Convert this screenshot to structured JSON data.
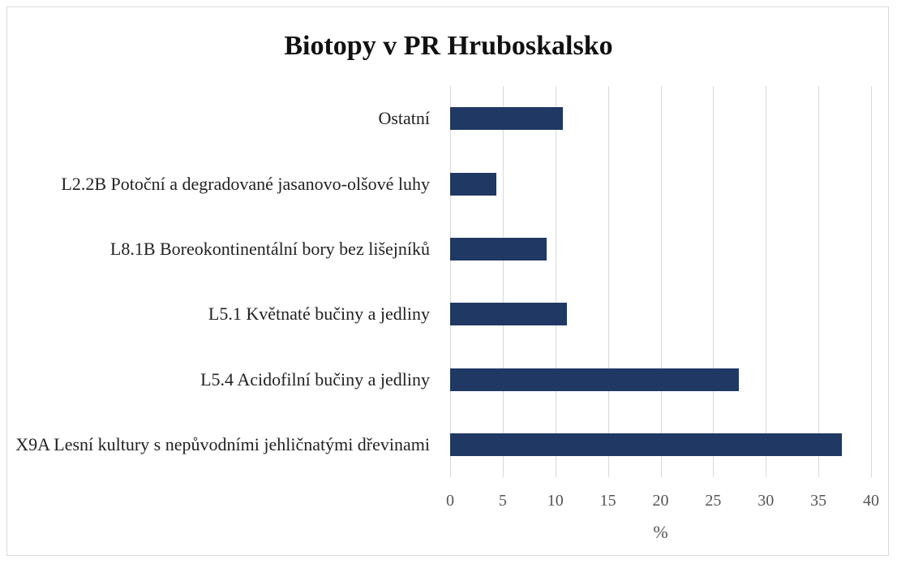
{
  "chart_data": {
    "type": "bar",
    "orientation": "horizontal",
    "title": "Biotopy v PR Hruboskalsko",
    "xlabel": "%",
    "categories": [
      "Ostatní",
      "L2.2B Potoční a degradované jasanovo-olšové luhy",
      "L8.1B Boreokontinentální bory bez lišejníků",
      "L5.1 Květnaté bučiny a jedliny",
      "L5.4 Acidofilní bučiny a jedliny",
      "X9A Lesní kultury s nepůvodními jehličnatými dřevinami"
    ],
    "values": [
      10.7,
      4.4,
      9.2,
      11.1,
      27.4,
      37.2
    ],
    "color": "#203864",
    "xlim": [
      0,
      40
    ],
    "xticks": [
      0,
      5,
      10,
      15,
      20,
      25,
      30,
      35,
      40
    ],
    "grid": true
  }
}
